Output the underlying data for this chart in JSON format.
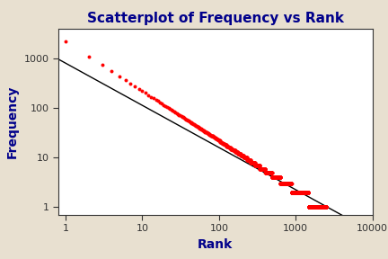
{
  "title": "Scatterplot of Frequency vs Rank",
  "xlabel": "Rank",
  "ylabel": "Frequency",
  "bg_color": "#e8e0d0",
  "plot_bg_color": "#ffffff",
  "dot_color": "#ff0000",
  "line_color": "#000000",
  "title_fontsize": 11,
  "label_fontsize": 10,
  "xlim_log": [
    0,
    4
  ],
  "ylim": [
    0.7,
    4000
  ],
  "xticks": [
    1,
    10,
    100,
    1000,
    10000
  ],
  "yticks": [
    1,
    10,
    100,
    1000
  ],
  "n_words": 2500,
  "zipf_C": 2200,
  "zipf_alpha": 1.0,
  "line_C": 800,
  "line_alpha": 0.85
}
